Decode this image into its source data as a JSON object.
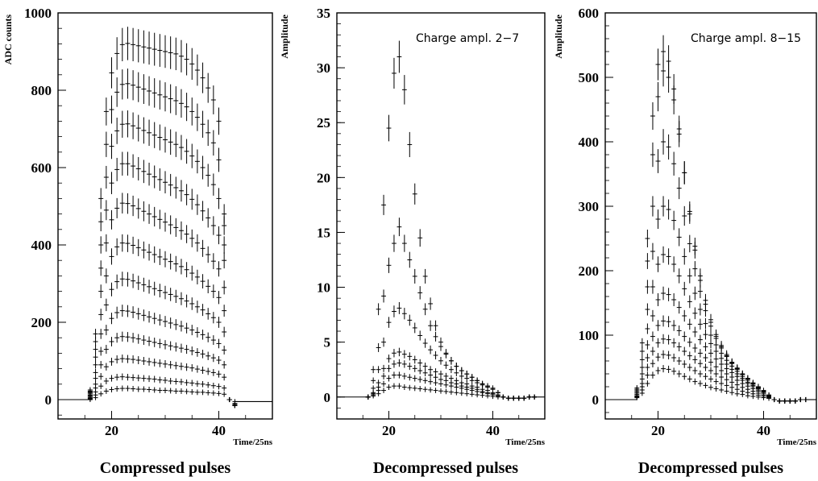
{
  "chart_data": [
    {
      "type": "scatter",
      "caption": "Compressed pulses",
      "xlabel": "Time/25ns",
      "ylabel": "ADC counts",
      "annotation": "",
      "xlim": [
        10,
        50
      ],
      "ylim": [
        -50,
        1000
      ],
      "x_ticks": [
        20,
        40
      ],
      "y_ticks": [
        0,
        200,
        400,
        600,
        800,
        1000
      ],
      "x": [
        16,
        17,
        18,
        19,
        20,
        21,
        22,
        23,
        24,
        25,
        26,
        27,
        28,
        29,
        30,
        31,
        32,
        33,
        34,
        35,
        36,
        37,
        38,
        39,
        40,
        41,
        42,
        43
      ],
      "series": [
        {
          "values": [
            0,
            5,
            15,
            22,
            26,
            28,
            29,
            29,
            28,
            27,
            27,
            26,
            25,
            24,
            24,
            23,
            22,
            22,
            21,
            20,
            19,
            19,
            18,
            17,
            16,
            14,
            0,
            -5
          ]
        },
        {
          "values": [
            2,
            12,
            35,
            48,
            55,
            58,
            59,
            58,
            57,
            56,
            55,
            54,
            53,
            51,
            50,
            48,
            47,
            46,
            44,
            43,
            41,
            40,
            38,
            36,
            34,
            30,
            0,
            -10
          ]
        },
        {
          "values": [
            3,
            20,
            60,
            85,
            98,
            104,
            106,
            105,
            104,
            102,
            100,
            98,
            96,
            94,
            92,
            90,
            88,
            86,
            84,
            82,
            79,
            76,
            73,
            70,
            66,
            58,
            0,
            -12
          ]
        },
        {
          "values": [
            5,
            30,
            90,
            130,
            150,
            160,
            163,
            162,
            160,
            157,
            154,
            151,
            148,
            145,
            142,
            139,
            136,
            133,
            130,
            126,
            122,
            118,
            113,
            108,
            102,
            90,
            0,
            -15
          ]
        },
        {
          "values": [
            8,
            40,
            125,
            180,
            210,
            225,
            230,
            229,
            226,
            222,
            218,
            214,
            210,
            206,
            202,
            198,
            194,
            190,
            185,
            180,
            174,
            168,
            161,
            154,
            145,
            128,
            0,
            -15
          ]
        },
        {
          "values": [
            10,
            55,
            170,
            245,
            285,
            305,
            312,
            311,
            307,
            302,
            297,
            292,
            287,
            282,
            277,
            272,
            267,
            261,
            255,
            248,
            240,
            232,
            222,
            212,
            200,
            175,
            0,
            -15
          ]
        },
        {
          "values": [
            12,
            70,
            220,
            320,
            370,
            395,
            405,
            404,
            399,
            393,
            387,
            381,
            375,
            369,
            363,
            357,
            351,
            344,
            336,
            327,
            317,
            306,
            293,
            280,
            264,
            230,
            0,
            -15
          ]
        },
        {
          "values": [
            15,
            90,
            280,
            405,
            465,
            495,
            508,
            507,
            501,
            494,
            487,
            480,
            473,
            466,
            459,
            452,
            445,
            437,
            428,
            417,
            405,
            391,
            375,
            358,
            338,
            290,
            0,
            -15
          ]
        },
        {
          "values": [
            18,
            110,
            340,
            490,
            560,
            595,
            610,
            610,
            604,
            597,
            590,
            583,
            576,
            569,
            562,
            555,
            548,
            540,
            530,
            518,
            504,
            488,
            470,
            450,
            425,
            360,
            0,
            -15
          ]
        },
        {
          "values": [
            20,
            130,
            400,
            575,
            655,
            695,
            712,
            713,
            708,
            702,
            696,
            690,
            684,
            678,
            672,
            666,
            660,
            652,
            642,
            630,
            616,
            600,
            580,
            556,
            520,
            400,
            0,
            -15
          ]
        },
        {
          "values": [
            22,
            150,
            460,
            660,
            750,
            795,
            815,
            817,
            813,
            808,
            803,
            798,
            793,
            788,
            783,
            778,
            773,
            766,
            757,
            745,
            730,
            712,
            690,
            664,
            620,
            450,
            0,
            -15
          ]
        },
        {
          "values": [
            25,
            170,
            520,
            745,
            845,
            895,
            918,
            921,
            918,
            915,
            912,
            909,
            906,
            903,
            900,
            897,
            894,
            888,
            880,
            868,
            852,
            832,
            806,
            775,
            720,
            480,
            0,
            -15
          ]
        }
      ]
    },
    {
      "type": "scatter",
      "caption": "Decompressed pulses",
      "xlabel": "Time/25ns",
      "ylabel": "Amplitude",
      "annotation": "Charge ampl. 2−7",
      "xlim": [
        10,
        50
      ],
      "ylim": [
        -2,
        35
      ],
      "x_ticks": [
        20,
        40
      ],
      "y_ticks": [
        0,
        5,
        10,
        15,
        20,
        25,
        30,
        35
      ],
      "x": [
        16,
        17,
        18,
        19,
        20,
        21,
        22,
        23,
        24,
        25,
        26,
        27,
        28,
        29,
        30,
        31,
        32,
        33,
        34,
        35,
        36,
        37,
        38,
        39,
        40,
        41,
        42,
        43,
        44,
        45,
        46,
        47,
        48
      ],
      "series": [
        {
          "values": [
            0,
            0.1,
            0.3,
            0.6,
            0.9,
            1.0,
            1.0,
            0.9,
            0.85,
            0.8,
            0.75,
            0.7,
            0.65,
            0.6,
            0.55,
            0.5,
            0.45,
            0.4,
            0.35,
            0.3,
            0.25,
            0.2,
            0.15,
            0.1,
            0.05,
            0,
            0,
            -0.1,
            -0.1,
            -0.1,
            -0.1,
            0,
            0
          ]
        },
        {
          "values": [
            0,
            0.2,
            0.6,
            1.2,
            1.7,
            2.0,
            2.0,
            1.9,
            1.8,
            1.7,
            1.6,
            1.5,
            1.4,
            1.3,
            1.2,
            1.1,
            1.0,
            0.9,
            0.8,
            0.7,
            0.6,
            0.5,
            0.4,
            0.3,
            0.2,
            0.1,
            0,
            -0.1,
            -0.1,
            -0.1,
            -0.1,
            0,
            0
          ]
        },
        {
          "values": [
            0,
            0.3,
            0.9,
            1.9,
            2.6,
            3.0,
            3.1,
            3.0,
            2.8,
            2.6,
            2.4,
            2.2,
            2.0,
            1.8,
            1.6,
            1.5,
            1.3,
            1.2,
            1.0,
            0.9,
            0.8,
            0.7,
            0.5,
            0.4,
            0.3,
            0.1,
            0,
            -0.1,
            -0.1,
            -0.1,
            -0.1,
            0,
            0
          ]
        },
        {
          "values": [
            0,
            0.4,
            1.3,
            2.6,
            3.5,
            4.0,
            4.1,
            3.9,
            3.7,
            3.4,
            3.1,
            2.8,
            2.5,
            2.3,
            2.1,
            1.9,
            1.7,
            1.5,
            1.3,
            1.2,
            1.0,
            0.9,
            0.7,
            0.6,
            0.4,
            0.2,
            0,
            -0.1,
            -0.1,
            -0.1,
            -0.1,
            0,
            0
          ]
        },
        {
          "values": [
            0,
            0.8,
            2.5,
            5.0,
            6.8,
            7.8,
            8.1,
            7.6,
            7.0,
            6.3,
            5.6,
            4.9,
            4.3,
            3.8,
            3.3,
            2.9,
            2.5,
            2.2,
            1.9,
            1.7,
            1.5,
            1.3,
            1.1,
            0.9,
            0.7,
            0.4,
            0,
            -0.1,
            -0.1,
            -0.1,
            -0.1,
            0,
            0
          ]
        },
        {
          "values": [
            0,
            1.5,
            4.5,
            9.2,
            12.0,
            14.0,
            15.5,
            14.0,
            12.5,
            11.0,
            9.5,
            8.0,
            6.5,
            5.5,
            4.6,
            3.9,
            3.3,
            2.8,
            2.4,
            2.1,
            1.8,
            1.5,
            1.2,
            1.0,
            0.8,
            0.4,
            0,
            -0.1,
            -0.1,
            -0.1,
            -0.1,
            0,
            0
          ]
        },
        {
          "values": [
            0,
            2.5,
            8.0,
            17.5,
            24.5,
            29.5,
            31.0,
            28.0,
            23.0,
            18.5,
            14.5,
            11.0,
            8.5,
            6.5,
            5.0,
            4.0,
            3.3,
            2.8,
            2.4,
            2.1,
            1.8,
            1.5,
            1.2,
            1.0,
            0.8,
            0.4,
            0,
            -0.1,
            -0.1,
            -0.1,
            -0.1,
            0,
            0
          ]
        }
      ]
    },
    {
      "type": "scatter",
      "caption": "Decompressed pulses",
      "xlabel": "Time/25ns",
      "ylabel": "Amplitude",
      "annotation": "Charge ampl. 8−15",
      "xlim": [
        10,
        50
      ],
      "ylim": [
        -30,
        600
      ],
      "x_ticks": [
        20,
        40
      ],
      "y_ticks": [
        0,
        100,
        200,
        300,
        400,
        500,
        600
      ],
      "x": [
        16,
        17,
        18,
        19,
        20,
        21,
        22,
        23,
        24,
        25,
        26,
        27,
        28,
        29,
        30,
        31,
        32,
        33,
        34,
        35,
        36,
        37,
        38,
        39,
        40,
        41,
        42,
        43,
        44,
        45,
        46,
        47,
        48
      ],
      "series": [
        {
          "values": [
            3,
            10,
            25,
            38,
            45,
            48,
            47,
            44,
            40,
            36,
            32,
            28,
            25,
            22,
            19,
            17,
            15,
            13,
            11,
            9,
            8,
            6,
            5,
            4,
            3,
            2,
            0,
            -2,
            -2,
            -2,
            -2,
            0,
            0
          ]
        },
        {
          "values": [
            4,
            15,
            38,
            56,
            66,
            70,
            69,
            65,
            60,
            55,
            50,
            45,
            40,
            36,
            32,
            28,
            25,
            22,
            19,
            16,
            13,
            11,
            9,
            7,
            5,
            3,
            0,
            -2,
            -2,
            -2,
            -2,
            0,
            0
          ]
        },
        {
          "values": [
            5,
            20,
            50,
            75,
            88,
            94,
            93,
            88,
            82,
            75,
            68,
            62,
            56,
            50,
            45,
            40,
            35,
            31,
            27,
            23,
            19,
            16,
            13,
            10,
            7,
            4,
            0,
            -2,
            -2,
            -2,
            -2,
            0,
            0
          ]
        },
        {
          "values": [
            6,
            25,
            65,
            98,
            115,
            122,
            121,
            115,
            107,
            98,
            89,
            80,
            72,
            65,
            58,
            51,
            45,
            40,
            35,
            30,
            25,
            21,
            17,
            13,
            9,
            5,
            0,
            -2,
            -2,
            -2,
            -2,
            0,
            0
          ]
        },
        {
          "values": [
            8,
            32,
            85,
            130,
            155,
            165,
            163,
            155,
            143,
            130,
            117,
            105,
            93,
            82,
            72,
            63,
            55,
            48,
            42,
            36,
            30,
            25,
            20,
            15,
            11,
            6,
            0,
            -2,
            -2,
            -2,
            -2,
            0,
            0
          ]
        },
        {
          "values": [
            10,
            40,
            110,
            175,
            210,
            225,
            222,
            210,
            192,
            172,
            152,
            134,
            117,
            101,
            87,
            75,
            64,
            55,
            47,
            40,
            33,
            27,
            22,
            17,
            12,
            6,
            0,
            -2,
            -2,
            -2,
            -2,
            0,
            0
          ]
        },
        {
          "values": [
            12,
            50,
            140,
            230,
            280,
            300,
            295,
            278,
            252,
            222,
            192,
            165,
            140,
            118,
            100,
            85,
            72,
            61,
            52,
            44,
            36,
            30,
            24,
            18,
            13,
            7,
            0,
            -2,
            -2,
            -2,
            -2,
            0,
            0
          ]
        },
        {
          "values": [
            14,
            62,
            175,
            300,
            370,
            400,
            392,
            366,
            328,
            285,
            242,
            203,
            168,
            138,
            114,
            95,
            80,
            67,
            56,
            47,
            39,
            32,
            25,
            19,
            14,
            7,
            0,
            -2,
            -2,
            -2,
            -2,
            0,
            0
          ]
        },
        {
          "values": [
            16,
            75,
            215,
            380,
            470,
            510,
            500,
            465,
            412,
            352,
            292,
            238,
            192,
            154,
            124,
            101,
            84,
            70,
            58,
            49,
            40,
            33,
            26,
            20,
            14,
            7,
            0,
            -2,
            -2,
            -2,
            -2,
            0,
            0
          ]
        },
        {
          "values": [
            18,
            88,
            250,
            440,
            520,
            540,
            525,
            482,
            420,
            352,
            288,
            232,
            185,
            148,
            120,
            98,
            82,
            68,
            57,
            48,
            39,
            32,
            25,
            19,
            14,
            7,
            0,
            -2,
            -2,
            -2,
            -2,
            0,
            0
          ]
        }
      ]
    }
  ]
}
